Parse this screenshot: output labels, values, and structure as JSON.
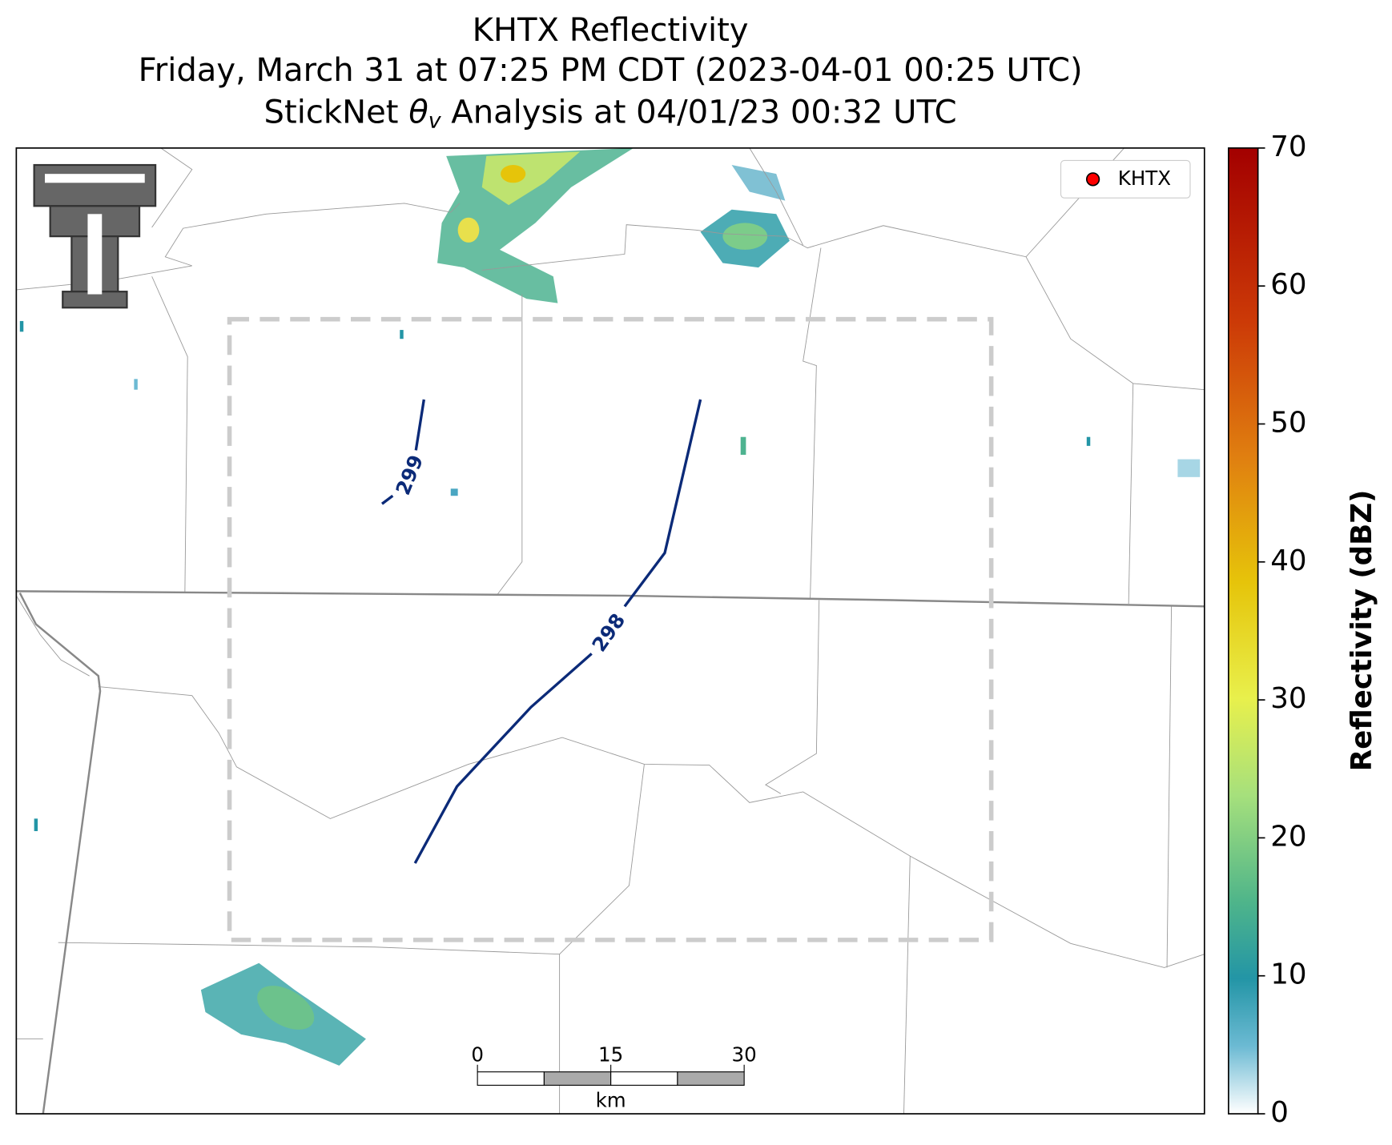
{
  "title_lines": [
    "KHTX Reflectivity",
    "Friday, March 31 at 07:25 PM CDT (2023-04-01 00:25 UTC)"
  ],
  "subtitle": {
    "before": "StickNet ",
    "symbol": "θ",
    "subscript": "v",
    "after": " Analysis at 04/01/23 00:32 UTC"
  },
  "legend": {
    "label": "KHTX",
    "color": "#ff0000"
  },
  "contours": [
    {
      "level": 299,
      "color": "#0b2a78"
    },
    {
      "level": 298,
      "color": "#0b2a78"
    }
  ],
  "colorbar": {
    "label": "Reflectivity (dBZ)",
    "range": [
      0,
      70
    ],
    "ticks": [
      0,
      10,
      20,
      30,
      40,
      50,
      60,
      70
    ]
  },
  "scale_bar": {
    "range": [
      0,
      30
    ],
    "ticks": [
      0,
      15,
      30
    ],
    "unit": "km"
  }
}
